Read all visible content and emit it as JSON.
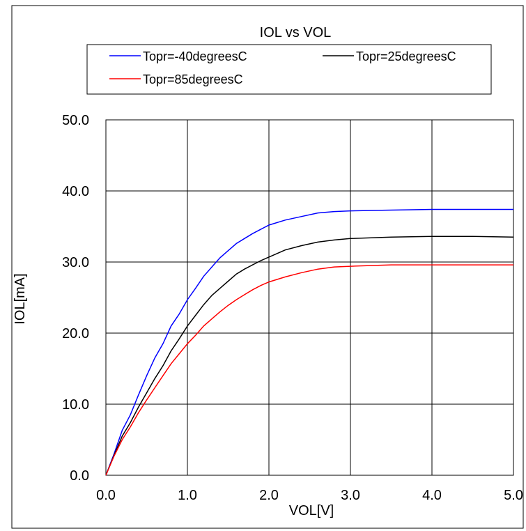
{
  "chart_data": {
    "type": "line",
    "title": "IOL vs VOL",
    "xlabel": "VOL[V]",
    "ylabel": "IOL[mA]",
    "xlim": [
      0,
      5
    ],
    "ylim": [
      0,
      50
    ],
    "xticks": [
      "0.0",
      "1.0",
      "2.0",
      "3.0",
      "4.0",
      "5.0"
    ],
    "yticks": [
      "0.0",
      "10.0",
      "20.0",
      "30.0",
      "40.0",
      "50.0"
    ],
    "grid": true,
    "legend_position": "top",
    "series": [
      {
        "name": "Topr=-40degreesC",
        "color": "#0000ff",
        "x": [
          0,
          0.1,
          0.2,
          0.3,
          0.4,
          0.5,
          0.6,
          0.7,
          0.8,
          0.9,
          1.0,
          1.1,
          1.2,
          1.3,
          1.4,
          1.5,
          1.6,
          1.7,
          1.8,
          1.9,
          2.0,
          2.2,
          2.4,
          2.6,
          2.8,
          3.0,
          3.5,
          4.0,
          4.5,
          5.0
        ],
        "y": [
          0,
          3.0,
          6.3,
          8.5,
          11.3,
          14.0,
          16.5,
          18.5,
          21.0,
          22.7,
          24.7,
          26.3,
          28.0,
          29.3,
          30.6,
          31.6,
          32.6,
          33.3,
          34.0,
          34.6,
          35.2,
          35.9,
          36.4,
          36.9,
          37.1,
          37.2,
          37.3,
          37.4,
          37.4,
          37.4
        ]
      },
      {
        "name": "Topr=25degreesC",
        "color": "#000000",
        "x": [
          0,
          0.1,
          0.2,
          0.3,
          0.4,
          0.5,
          0.6,
          0.7,
          0.8,
          0.9,
          1.0,
          1.1,
          1.2,
          1.3,
          1.4,
          1.5,
          1.6,
          1.7,
          1.8,
          1.9,
          2.0,
          2.2,
          2.4,
          2.6,
          2.8,
          3.0,
          3.5,
          4.0,
          4.5,
          5.0
        ],
        "y": [
          0,
          2.8,
          5.5,
          7.4,
          9.6,
          11.6,
          13.6,
          15.4,
          17.5,
          19.2,
          21.0,
          22.5,
          24.0,
          25.3,
          26.3,
          27.3,
          28.3,
          29.0,
          29.6,
          30.2,
          30.7,
          31.7,
          32.3,
          32.8,
          33.1,
          33.3,
          33.5,
          33.6,
          33.6,
          33.5
        ]
      },
      {
        "name": "Topr=85degreesC",
        "color": "#ff0000",
        "x": [
          0,
          0.1,
          0.2,
          0.3,
          0.4,
          0.5,
          0.6,
          0.7,
          0.8,
          0.9,
          1.0,
          1.1,
          1.2,
          1.3,
          1.4,
          1.5,
          1.6,
          1.7,
          1.8,
          1.9,
          2.0,
          2.2,
          2.4,
          2.6,
          2.8,
          3.0,
          3.5,
          4.0,
          4.5,
          5.0
        ],
        "y": [
          0,
          2.7,
          5.0,
          6.8,
          8.8,
          10.6,
          12.3,
          14.0,
          15.7,
          17.1,
          18.5,
          19.7,
          21.0,
          22.0,
          23.0,
          23.9,
          24.7,
          25.4,
          26.1,
          26.7,
          27.2,
          27.9,
          28.5,
          29.0,
          29.3,
          29.4,
          29.6,
          29.6,
          29.6,
          29.6
        ]
      }
    ]
  }
}
